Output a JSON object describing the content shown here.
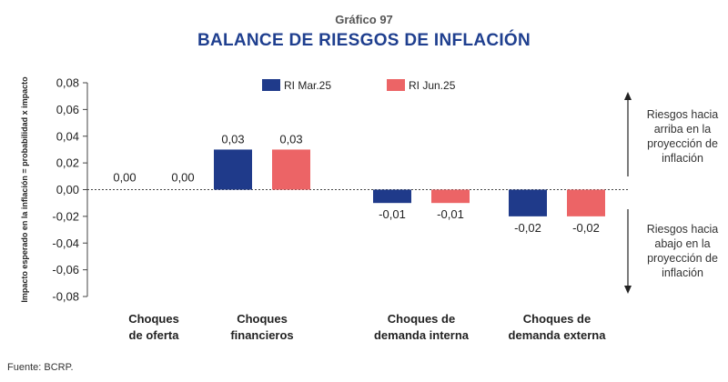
{
  "header": {
    "kicker": "Gráfico 97",
    "title": "BALANCE DE RIESGOS DE INFLACIÓN"
  },
  "source": "Fuente: BCRP.",
  "side_notes": {
    "up": "Riesgos hacia arriba en la proyección de inflación",
    "down": "Riesgos hacia abajo en la proyección de inflación"
  },
  "chart_data": {
    "type": "bar",
    "title": "BALANCE DE RIESGOS DE INFLACIÓN",
    "ylabel": "Impacto esperado en la inflación = probabilidad x impacto",
    "xlabel": "",
    "ylim": [
      -0.08,
      0.08
    ],
    "yticks": [
      0.08,
      0.06,
      0.04,
      0.02,
      0.0,
      -0.02,
      -0.04,
      -0.06,
      -0.08
    ],
    "ytick_labels": [
      "0,08",
      "0,06",
      "0,04",
      "0,02",
      "0,00",
      "-0,02",
      "-0,04",
      "-0,06",
      "-0,08"
    ],
    "categories": [
      [
        "Choques",
        "de oferta"
      ],
      [
        "Choques",
        "financieros"
      ],
      [
        "Choques de",
        "demanda interna"
      ],
      [
        "Choques de",
        "demanda externa"
      ]
    ],
    "series": [
      {
        "name": "RI Mar.25",
        "color": "#1f3a8a",
        "values": [
          0.0,
          0.03,
          -0.01,
          -0.02
        ],
        "labels": [
          "0,00",
          "0,03",
          "-0,01",
          "-0,02"
        ]
      },
      {
        "name": "RI Jun.25",
        "color": "#ec6466",
        "values": [
          0.0,
          0.03,
          -0.01,
          -0.02
        ],
        "labels": [
          "0,00",
          "0,03",
          "-0,01",
          "-0,02"
        ]
      }
    ],
    "legend_position": "top",
    "grid": false
  }
}
